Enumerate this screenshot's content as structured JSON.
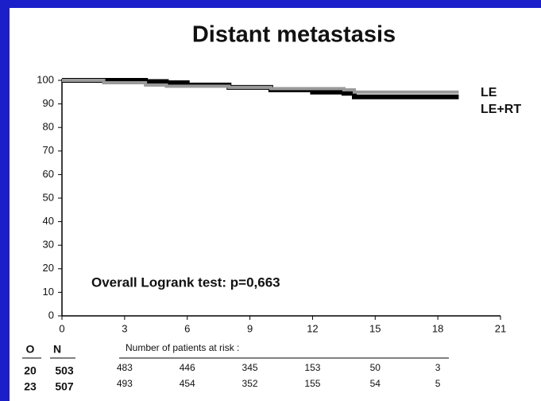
{
  "chart_data": {
    "type": "step",
    "title": "Distant metastasis",
    "annotation": "Overall Logrank test: p=0,663",
    "x": [
      0,
      2,
      4,
      5,
      6,
      8,
      10,
      11,
      12,
      13.5,
      14,
      19
    ],
    "series": [
      {
        "name": "LE",
        "color": "#000000",
        "values": [
          100,
          100,
          99.5,
          99,
          98,
          97,
          96,
          96,
          95,
          94.5,
          93,
          93
        ]
      },
      {
        "name": "LE+RT",
        "color": "#9a9a9a",
        "values": [
          100,
          99,
          98,
          97.5,
          97.5,
          97,
          96.5,
          96.5,
          96.5,
          96,
          95,
          95
        ]
      }
    ],
    "xlim": [
      0,
      21
    ],
    "xticks": [
      0,
      3,
      6,
      9,
      12,
      15,
      18,
      21
    ],
    "ylim": [
      0,
      100
    ],
    "yticks": [
      0,
      10,
      20,
      30,
      40,
      50,
      60,
      70,
      80,
      90,
      100
    ],
    "risk_table": {
      "columns": [
        "O",
        "N"
      ],
      "header": "Number of patients at risk :",
      "rows": [
        {
          "observed": 20,
          "n": 503,
          "at_risk": [
            483,
            446,
            345,
            153,
            50,
            3
          ]
        },
        {
          "observed": 23,
          "n": 507,
          "at_risk": [
            493,
            454,
            352,
            155,
            54,
            5
          ]
        }
      ]
    }
  }
}
